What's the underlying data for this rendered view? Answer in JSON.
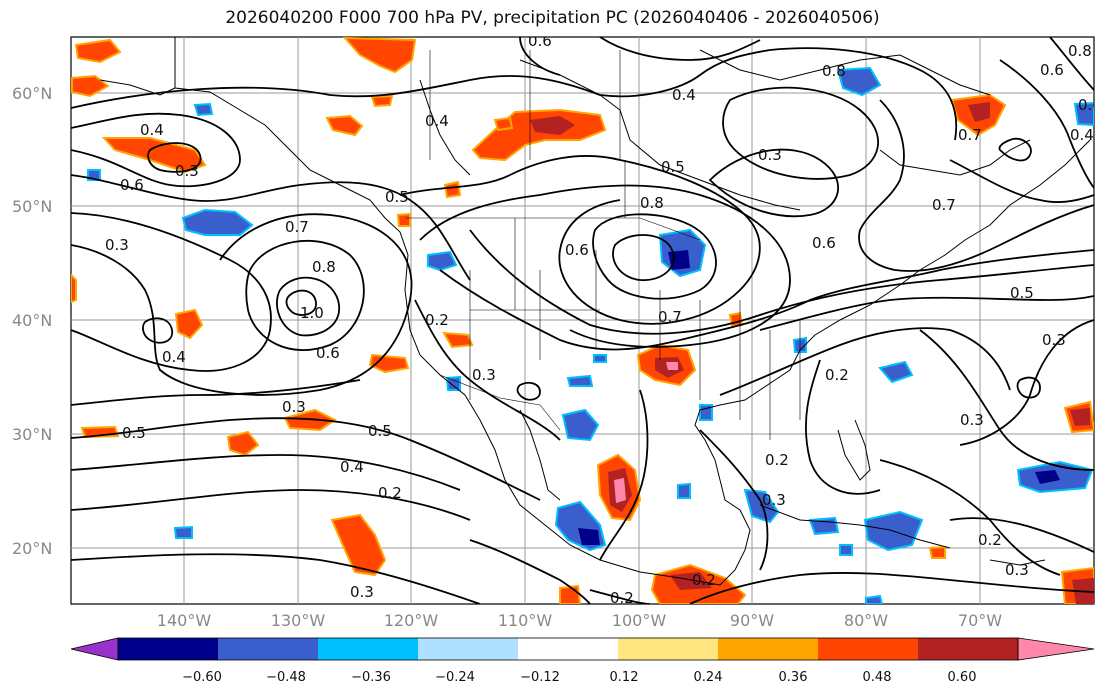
{
  "title": "2026040200 F000 700 hPa PV, precipitation PC (2026040406 - 2026040506)",
  "lat_labels": [
    "60°N",
    "50°N",
    "40°N",
    "30°N",
    "20°N"
  ],
  "lon_labels": [
    "140°W",
    "130°W",
    "120°W",
    "110°W",
    "100°W",
    "90°W",
    "80°W",
    "70°W"
  ],
  "contour_labels": [
    "0.6",
    "0.8",
    "0.6",
    "0.8",
    "0.4",
    "0.4",
    "0.4",
    "0.3",
    "0.3",
    "0.6",
    "0.5",
    "0.5",
    "0.8",
    "0.7",
    "0.7",
    "0.3",
    "0.6",
    "0.7",
    "0.8",
    "1.0",
    "0.6",
    "0.2",
    "0.3",
    "0.7",
    "0.6",
    "0.5",
    "0.3",
    "0.4",
    "0.5",
    "0.5",
    "0.4",
    "0.2",
    "0.3",
    "0.2",
    "0.2",
    "0.3",
    "0.2",
    "0.3",
    "0.2",
    "0.3",
    "0.3",
    "0.4",
    "0.6",
    "0.2"
  ],
  "colorbar": {
    "ticks": [
      "−0.60",
      "−0.48",
      "−0.36",
      "−0.24",
      "−0.12",
      "0.12",
      "0.24",
      "0.36",
      "0.48",
      "0.60"
    ],
    "colors": [
      "#9932cc",
      "#00008b",
      "#3a5fcd",
      "#00bfff",
      "#b0e0ff",
      "#ffffff",
      "#ffe680",
      "#ffa500",
      "#ff4500",
      "#b22222",
      "#ff88aa"
    ]
  }
}
